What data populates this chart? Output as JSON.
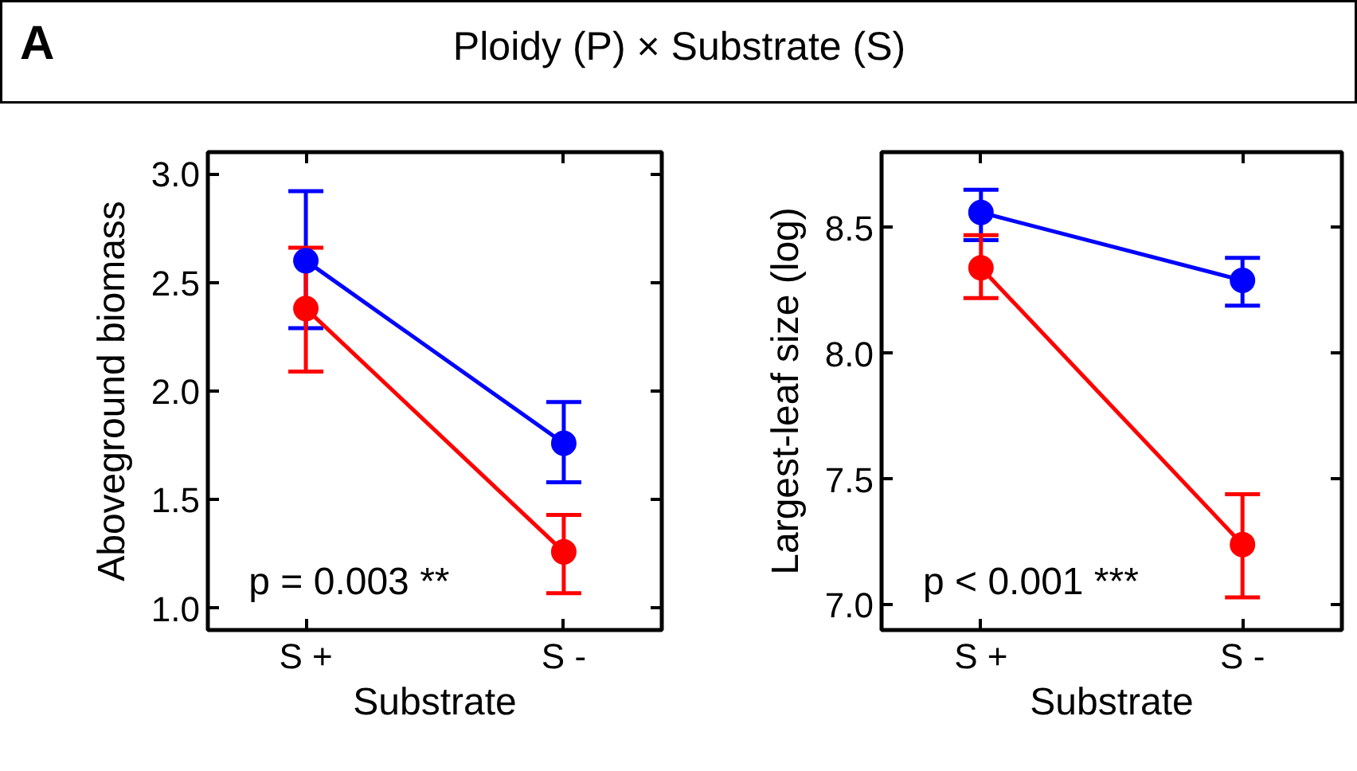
{
  "chart_data": [
    {
      "type": "line",
      "title": "Ploidy (P) × Substrate (S)",
      "annotations": [
        "A",
        "p = 0.003 **"
      ],
      "xlabel": "Substrate",
      "ylabel": "Aboveground biomass",
      "categories": [
        "S +",
        "S -"
      ],
      "series": [
        {
          "color": "#0000ff",
          "values": [
            2.6,
            1.76
          ],
          "errors": [
            [
              2.29,
              2.92
            ],
            [
              1.58,
              1.95
            ]
          ]
        },
        {
          "color": "#ff0000",
          "values": [
            2.38,
            1.26
          ],
          "errors": [
            [
              2.09,
              2.66
            ],
            [
              1.07,
              1.43
            ]
          ]
        }
      ],
      "ylim": [
        0.9,
        3.1
      ],
      "yticks": [
        {
          "value": 1.0,
          "label": "1.0"
        },
        {
          "value": 1.5,
          "label": "1.5"
        },
        {
          "value": 2.0,
          "label": "2.0"
        },
        {
          "value": 2.5,
          "label": "2.5"
        },
        {
          "value": 3.0,
          "label": "3.0"
        }
      ],
      "marker": "circle",
      "line_style": "solid",
      "grid": false
    },
    {
      "type": "line",
      "annotations": [
        "p < 0.001 ***"
      ],
      "xlabel": "Substrate",
      "ylabel": "Largest-leaf size (log)",
      "categories": [
        "S +",
        "S -"
      ],
      "series": [
        {
          "color": "#0000ff",
          "values": [
            8.56,
            8.29
          ],
          "errors": [
            [
              8.45,
              8.65
            ],
            [
              8.19,
              8.38
            ]
          ]
        },
        {
          "color": "#ff0000",
          "values": [
            8.34,
            7.24
          ],
          "errors": [
            [
              8.22,
              8.47
            ],
            [
              7.03,
              7.44
            ]
          ]
        }
      ],
      "ylim": [
        6.9,
        8.8
      ],
      "yticks": [
        {
          "value": 7.0,
          "label": "7.0"
        },
        {
          "value": 7.5,
          "label": "7.5"
        },
        {
          "value": 8.0,
          "label": "8.0"
        },
        {
          "value": 8.5,
          "label": "8.5"
        }
      ],
      "marker": "circle",
      "line_style": "solid",
      "grid": false
    }
  ]
}
